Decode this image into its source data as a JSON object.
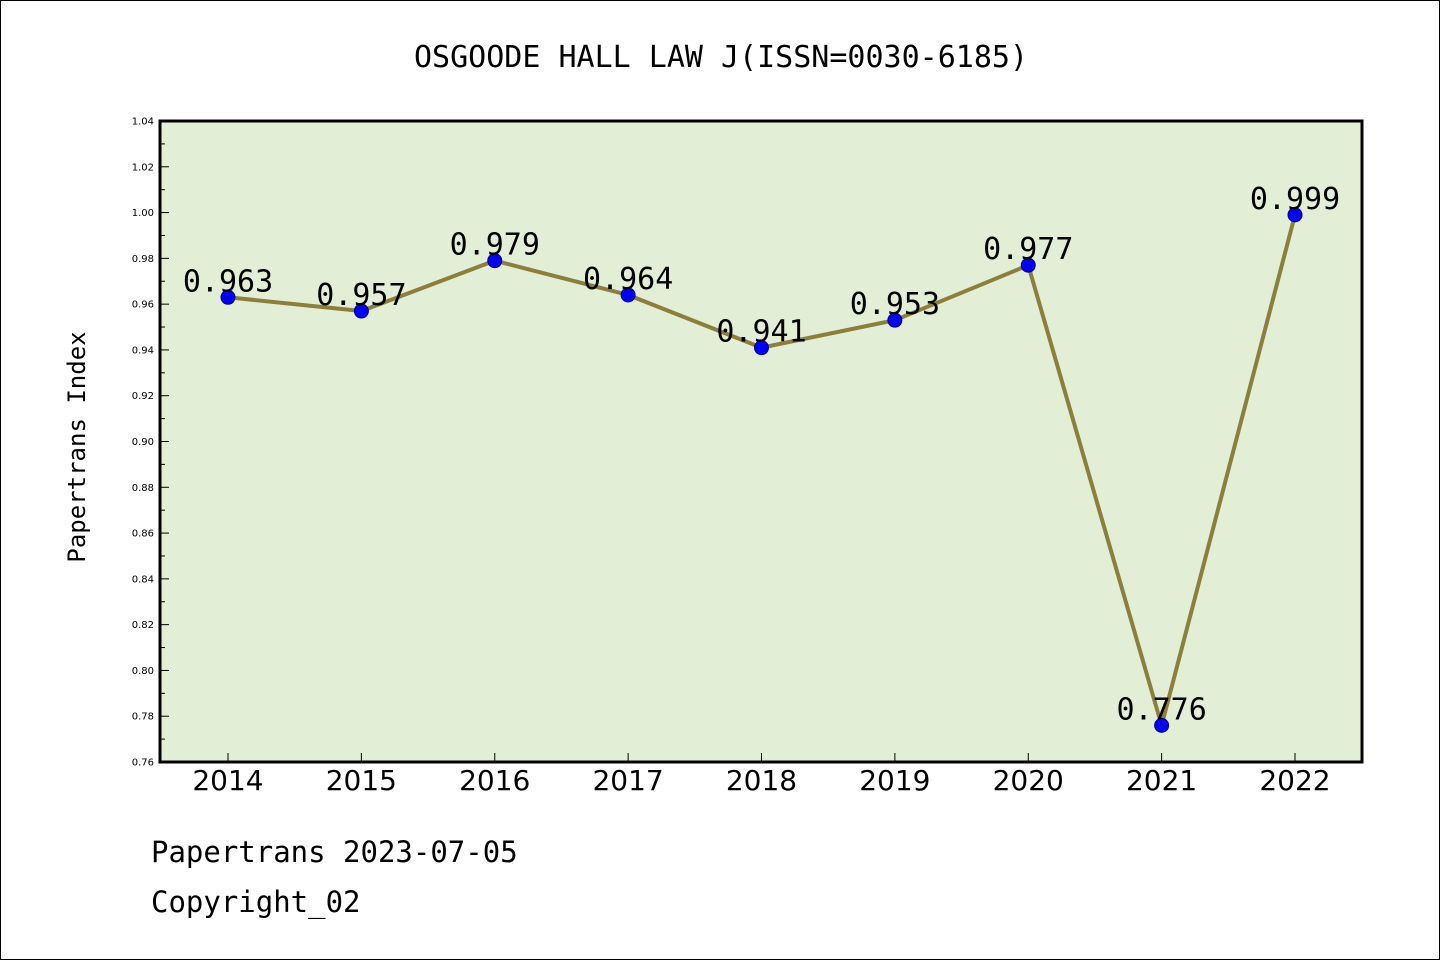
{
  "chart_data": {
    "type": "line",
    "title": "OSGOODE HALL LAW J(ISSN=0030-6185)",
    "xlabel": "",
    "ylabel": "Papertrans Index",
    "categories": [
      "2014",
      "2015",
      "2016",
      "2017",
      "2018",
      "2019",
      "2020",
      "2021",
      "2022"
    ],
    "series": [
      {
        "values": [
          0.963,
          0.957,
          0.979,
          0.964,
          0.941,
          0.953,
          0.977,
          0.776,
          0.999
        ]
      }
    ],
    "data_labels": [
      "0.963",
      "0.957",
      "0.979",
      "0.964",
      "0.941",
      "0.953",
      "0.977",
      "0.776",
      "0.999"
    ],
    "ylim": [
      0.76,
      1.04
    ],
    "yticks": [
      "0.76",
      "0.78",
      "0.80",
      "0.82",
      "0.84",
      "0.86",
      "0.88",
      "0.90",
      "0.92",
      "0.94",
      "0.96",
      "0.98",
      "1.00",
      "1.02",
      "1.04"
    ],
    "grid": false,
    "legend": "none",
    "colors": {
      "plot_background": "#e2efd6",
      "line": "#8c7f3a",
      "marker": "#0000ff"
    }
  },
  "footer": {
    "line1": "Papertrans 2023-07-05",
    "line2": "Copyright_02"
  }
}
